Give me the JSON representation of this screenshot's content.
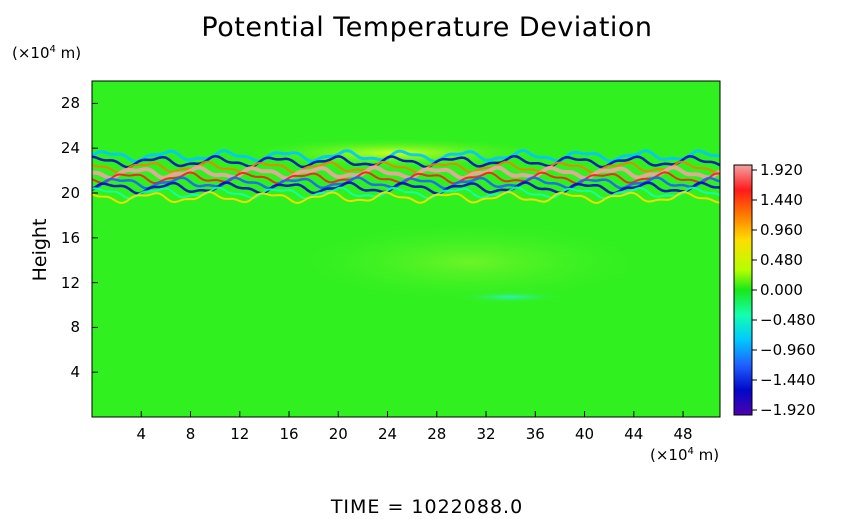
{
  "chart_data": {
    "type": "heatmap",
    "title": "Potential Temperature Deviation",
    "ylabel": "Height",
    "y_unit_prefix": "(×10",
    "y_unit_exp": "4",
    "y_unit_suffix": " m)",
    "x_unit_prefix": "(×10",
    "x_unit_exp": "4",
    "x_unit_suffix": " m)",
    "xlim": [
      0,
      51
    ],
    "ylim": [
      0,
      30
    ],
    "x_ticks": [
      "4",
      "8",
      "12",
      "16",
      "20",
      "24",
      "28",
      "32",
      "36",
      "40",
      "44",
      "48"
    ],
    "y_ticks": [
      "4",
      "8",
      "12",
      "16",
      "20",
      "24",
      "28"
    ],
    "colorbar": {
      "labels": [
        "1.920",
        "1.440",
        "0.960",
        "0.480",
        "0.000",
        "−0.480",
        "−0.960",
        "−1.440",
        "−1.920"
      ],
      "range": [
        -1.92,
        1.92
      ],
      "colors": [
        "#f2a3a3",
        "#ff1a1a",
        "#ff7a00",
        "#ffdd00",
        "#b5ff00",
        "#18e818",
        "#14ffb0",
        "#00c8ff",
        "#2060ff",
        "#0008c8",
        "#5000b0"
      ]
    },
    "features": [
      {
        "name": "strong oscillating band",
        "y_center": 21.2,
        "y_range": [
          19.5,
          23.5
        ],
        "x_range": [
          0,
          51
        ],
        "amplitude": 1.92
      },
      {
        "name": "warm arc above band",
        "y_center": 23.8,
        "x_range": [
          18,
          38
        ],
        "amplitude": 0.45
      },
      {
        "name": "warm anomaly below band",
        "y_center": 14,
        "x_range": [
          18,
          44
        ],
        "amplitude": 0.15
      },
      {
        "name": "cool patch",
        "y_center": 10.7,
        "x_range": [
          30,
          38
        ],
        "amplitude": -0.35
      }
    ],
    "footer": "TIME  =  1022088.0"
  }
}
